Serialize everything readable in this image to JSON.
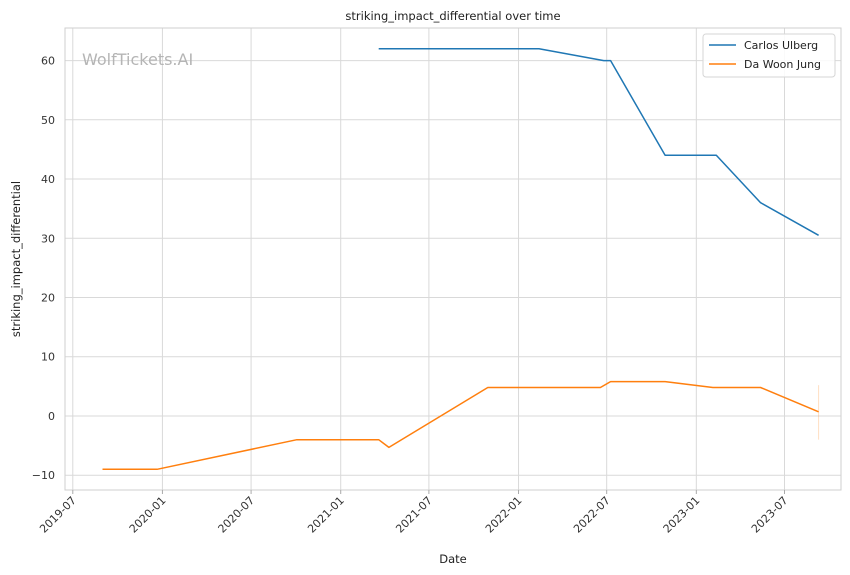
{
  "chart_data": {
    "type": "line",
    "title": "striking_impact_differential over time",
    "xlabel": "Date",
    "ylabel": "striking_impact_differential",
    "watermark": "WolfTickets.AI",
    "x_axis_type": "date",
    "xlim": [
      "2019-06-15",
      "2023-10-25"
    ],
    "ylim": [
      -12.5,
      65.5
    ],
    "x_ticks": [
      "2019-07",
      "2020-01",
      "2020-07",
      "2021-01",
      "2021-07",
      "2022-01",
      "2022-07",
      "2023-01",
      "2023-07"
    ],
    "x_tick_dates": [
      "2019-07-01",
      "2020-01-01",
      "2020-07-01",
      "2021-01-01",
      "2021-07-01",
      "2022-01-01",
      "2022-07-01",
      "2023-01-01",
      "2023-07-01"
    ],
    "y_ticks": [
      -10,
      0,
      10,
      20,
      30,
      40,
      50,
      60
    ],
    "grid": true,
    "legend_position": "top-right",
    "series": [
      {
        "name": "Carlos Ulberg",
        "color": "#1f77b4",
        "points": [
          {
            "x": "2021-03-20",
            "y": 62
          },
          {
            "x": "2022-02-12",
            "y": 62
          },
          {
            "x": "2022-06-25",
            "y": 60
          },
          {
            "x": "2022-07-09",
            "y": 60
          },
          {
            "x": "2022-10-29",
            "y": 44
          },
          {
            "x": "2023-02-11",
            "y": 44
          },
          {
            "x": "2023-05-13",
            "y": 36
          },
          {
            "x": "2023-09-09",
            "y": 30.5
          }
        ]
      },
      {
        "name": "Da Woon Jung",
        "color": "#ff7f0e",
        "points": [
          {
            "x": "2019-08-31",
            "y": -9
          },
          {
            "x": "2019-12-21",
            "y": -9
          },
          {
            "x": "2020-10-03",
            "y": -4
          },
          {
            "x": "2021-03-20",
            "y": -4
          },
          {
            "x": "2021-04-10",
            "y": -5.3
          },
          {
            "x": "2021-10-30",
            "y": 4.8
          },
          {
            "x": "2022-06-18",
            "y": 4.8
          },
          {
            "x": "2022-07-09",
            "y": 5.8
          },
          {
            "x": "2022-10-29",
            "y": 5.8
          },
          {
            "x": "2023-02-04",
            "y": 4.8
          },
          {
            "x": "2023-05-13",
            "y": 4.8
          },
          {
            "x": "2023-09-09",
            "y": 0.7
          }
        ],
        "error_band": {
          "x": "2023-09-09",
          "low": -4,
          "high": 5.2
        }
      }
    ]
  }
}
